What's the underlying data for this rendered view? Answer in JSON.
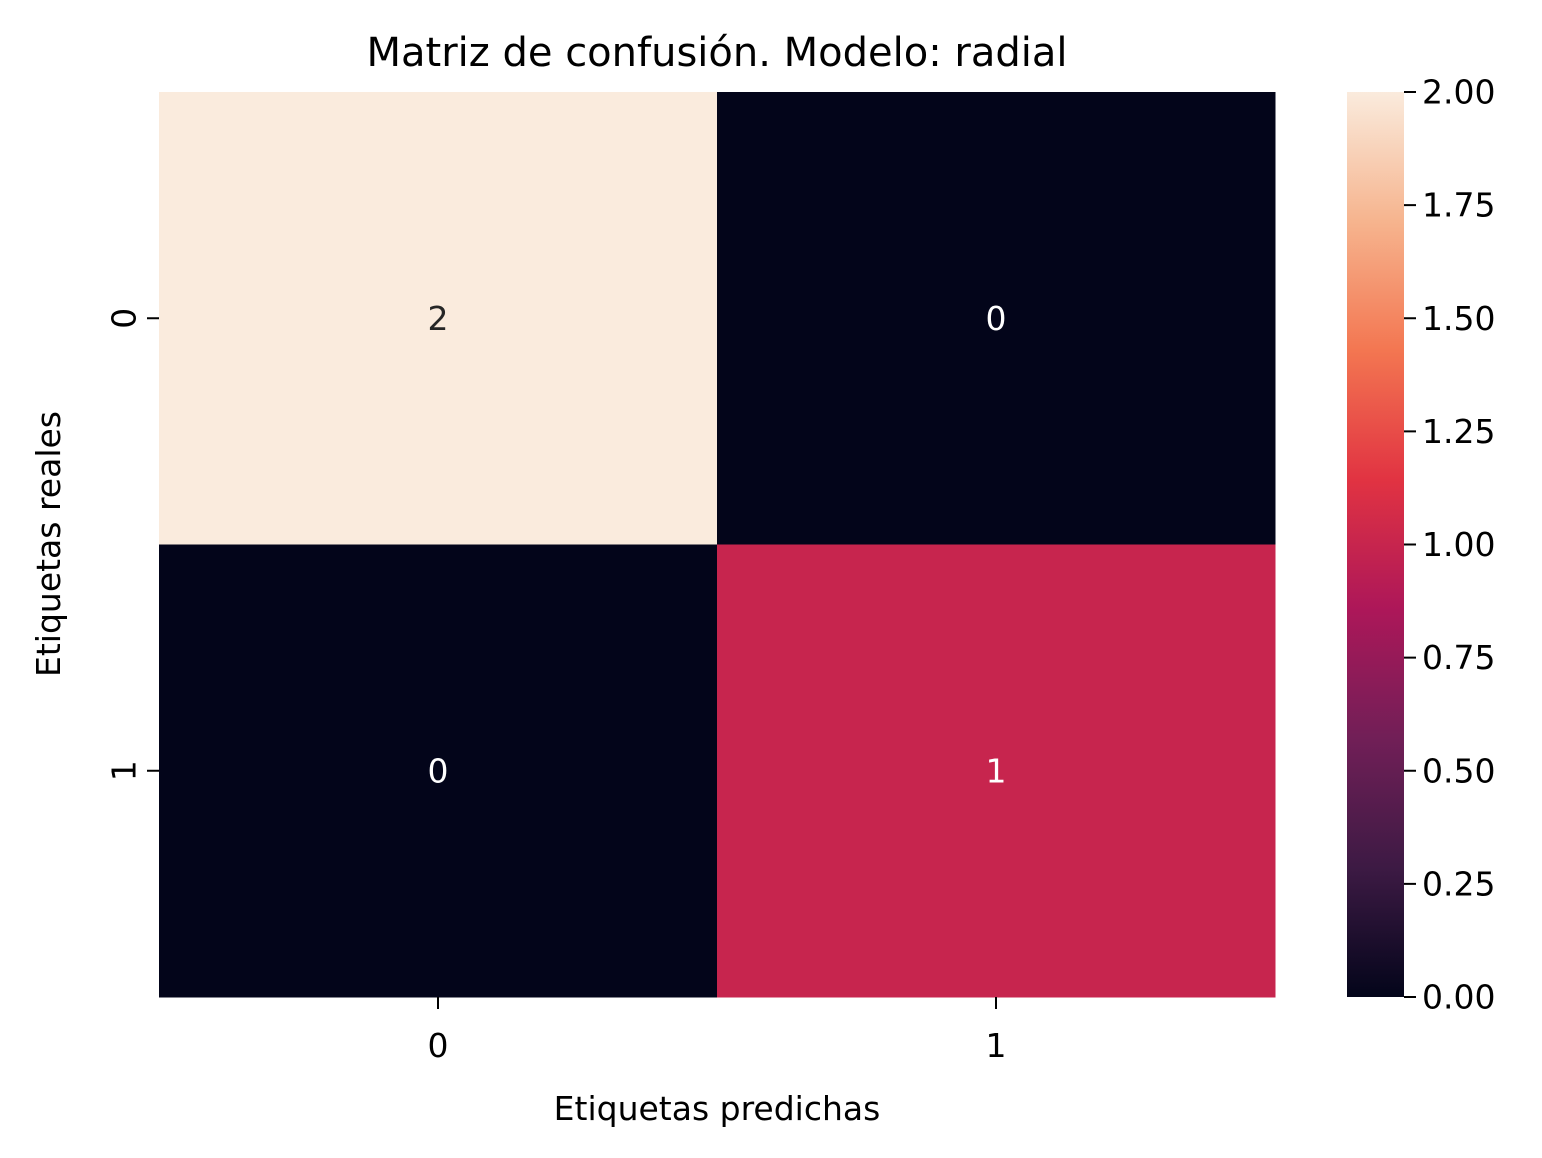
{
  "chart_data": {
    "type": "heatmap",
    "title": "Matriz de confusión. Modelo: radial",
    "xlabel": "Etiquetas predichas",
    "ylabel": "Etiquetas reales",
    "x_categories": [
      "0",
      "1"
    ],
    "y_categories": [
      "0",
      "1"
    ],
    "values": [
      [
        2,
        0
      ],
      [
        0,
        1
      ]
    ],
    "annotations": [
      [
        "2",
        "0"
      ],
      [
        "0",
        "1"
      ]
    ],
    "colorbar": {
      "min": 0,
      "max": 2,
      "ticks": [
        0.0,
        0.25,
        0.5,
        0.75,
        1.0,
        1.25,
        1.5,
        1.75,
        2.0
      ],
      "tick_labels": [
        "0.00",
        "0.25",
        "0.50",
        "0.75",
        "1.00",
        "1.25",
        "1.50",
        "1.75",
        "2.00"
      ],
      "colormap": [
        "#03051a",
        "#3d1a44",
        "#711f57",
        "#ad1759",
        "#e13342",
        "#f37651",
        "#f6b48e",
        "#faebdd"
      ]
    },
    "legend": "none",
    "grid": false
  }
}
